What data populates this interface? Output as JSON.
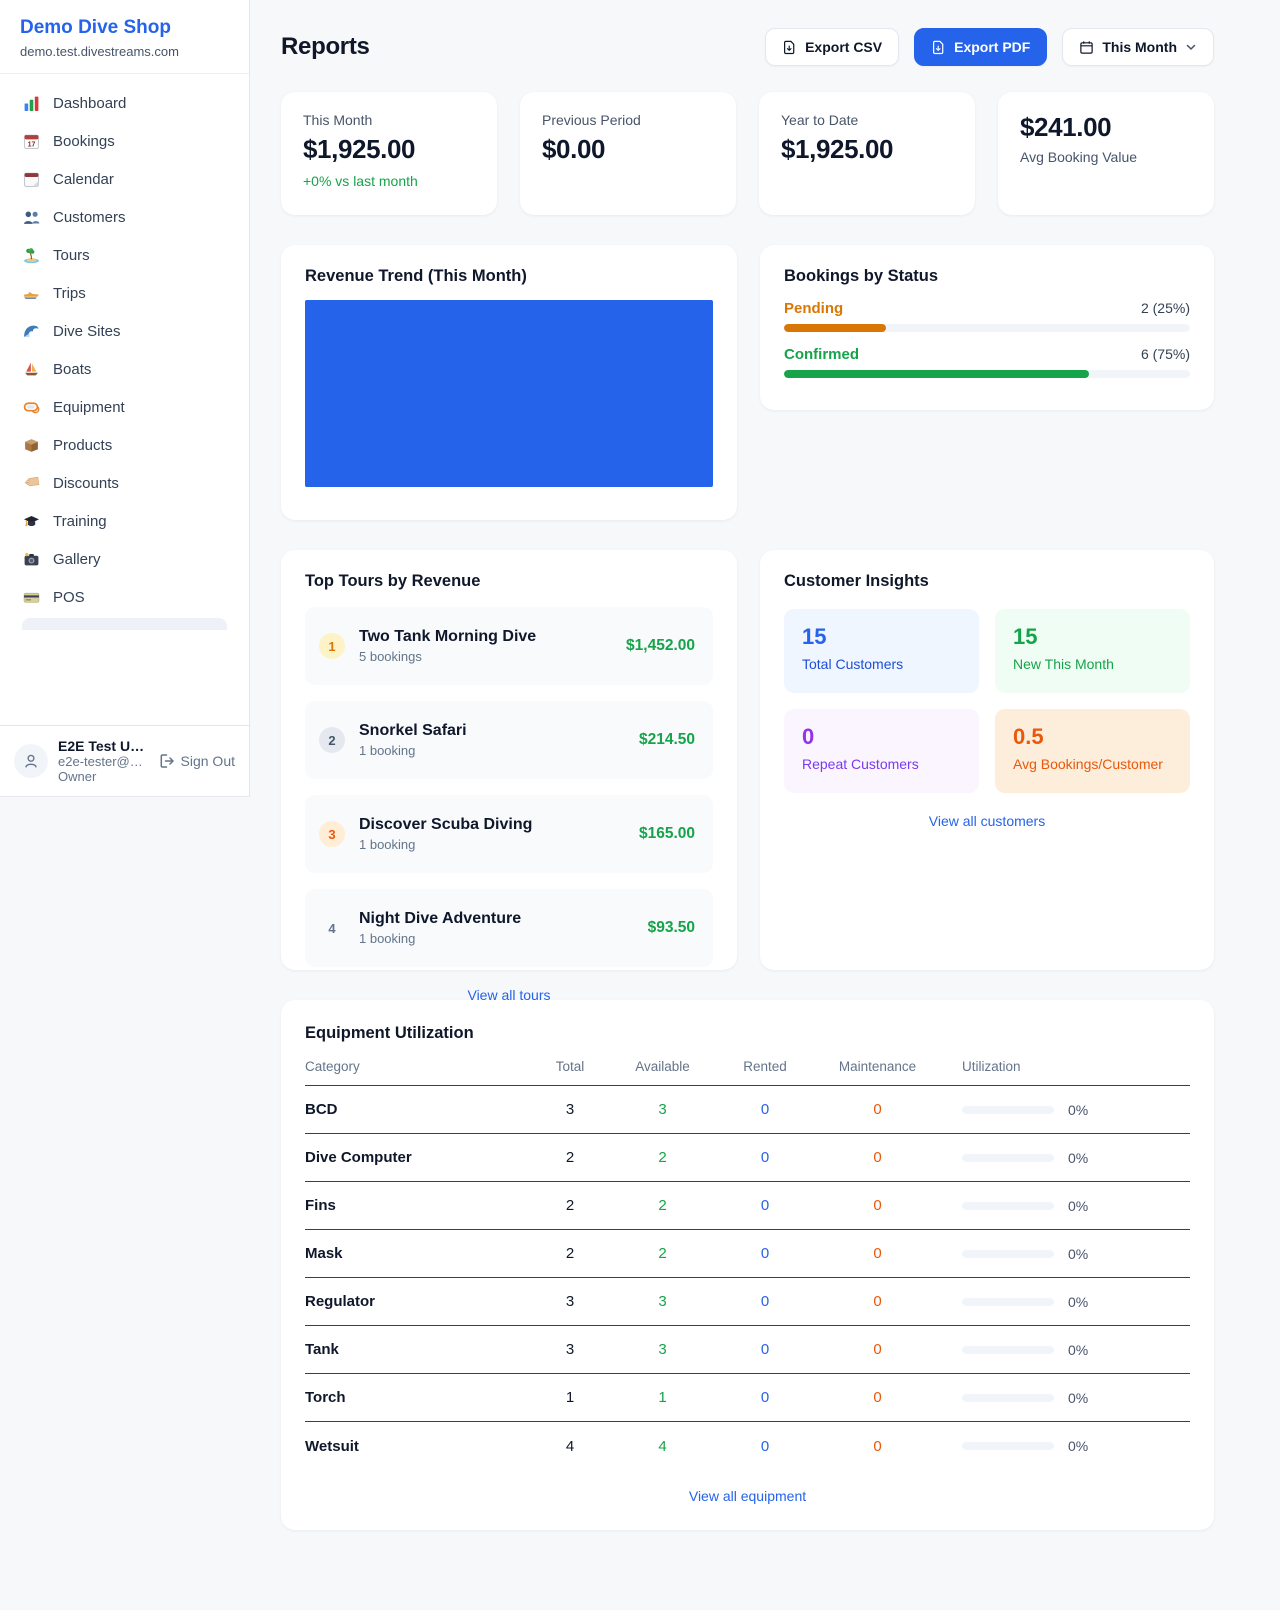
{
  "colors": {
    "accent": "#2563eb",
    "pending": "#d97706",
    "confirmed": "#16a34a",
    "rented": "#2563eb",
    "maintenance": "#ea580c",
    "revenue_bar": "#2563eb"
  },
  "sidebar": {
    "shop_name": "Demo Dive Shop",
    "domain": "demo.test.divestreams.com",
    "items": [
      {
        "icon": "bar-chart-icon",
        "label": "Dashboard"
      },
      {
        "icon": "calendar-date-icon",
        "label": "Bookings"
      },
      {
        "icon": "tear-calendar-icon",
        "label": "Calendar"
      },
      {
        "icon": "people-icon",
        "label": "Customers"
      },
      {
        "icon": "island-icon",
        "label": "Tours"
      },
      {
        "icon": "speedboat-icon",
        "label": "Trips"
      },
      {
        "icon": "wave-icon",
        "label": "Dive Sites"
      },
      {
        "icon": "sailboat-icon",
        "label": "Boats"
      },
      {
        "icon": "diving-mask-icon",
        "label": "Equipment"
      },
      {
        "icon": "package-icon",
        "label": "Products"
      },
      {
        "icon": "tag-icon",
        "label": "Discounts"
      },
      {
        "icon": "graduation-cap-icon",
        "label": "Training"
      },
      {
        "icon": "camera-icon",
        "label": "Gallery"
      },
      {
        "icon": "credit-card-icon",
        "label": "POS"
      }
    ],
    "user": {
      "name": "E2E Test U…",
      "email": "e2e-tester@…",
      "role": "Owner",
      "sign_out": "Sign Out"
    }
  },
  "header": {
    "title": "Reports",
    "export_csv": "Export CSV",
    "export_pdf": "Export PDF",
    "period": "This Month"
  },
  "stats": [
    {
      "label": "This Month",
      "value": "$1,925.00",
      "delta": "+0% vs last month"
    },
    {
      "label": "Previous Period",
      "value": "$0.00"
    },
    {
      "label": "Year to Date",
      "value": "$1,925.00"
    },
    {
      "value": "$241.00",
      "label": "Avg Booking Value"
    }
  ],
  "revenue_trend": {
    "title": "Revenue Trend (This Month)"
  },
  "bookings_by_status": {
    "title": "Bookings by Status",
    "rows": [
      {
        "label": "Pending",
        "value": "2 (25%)",
        "pct": 25
      },
      {
        "label": "Confirmed",
        "value": "6 (75%)",
        "pct": 75
      }
    ]
  },
  "top_tours": {
    "title": "Top Tours by Revenue",
    "rows": [
      {
        "rank": "1",
        "name": "Two Tank Morning Dive",
        "bookings": "5 bookings",
        "amount": "$1,452.00"
      },
      {
        "rank": "2",
        "name": "Snorkel Safari",
        "bookings": "1 booking",
        "amount": "$214.50"
      },
      {
        "rank": "3",
        "name": "Discover Scuba Diving",
        "bookings": "1 booking",
        "amount": "$165.00"
      },
      {
        "rank": "4",
        "name": "Night Dive Adventure",
        "bookings": "1 booking",
        "amount": "$93.50"
      }
    ],
    "view_all": "View all tours"
  },
  "customer_insights": {
    "title": "Customer Insights",
    "tiles": [
      {
        "value": "15",
        "label": "Total Customers"
      },
      {
        "value": "15",
        "label": "New This Month"
      },
      {
        "value": "0",
        "label": "Repeat Customers"
      },
      {
        "value": "0.5",
        "label": "Avg Bookings/Customer"
      }
    ],
    "view_all": "View all customers"
  },
  "equipment": {
    "title": "Equipment Utilization",
    "columns": [
      "Category",
      "Total",
      "Available",
      "Rented",
      "Maintenance",
      "Utilization"
    ],
    "rows": [
      {
        "category": "BCD",
        "total": "3",
        "available": "3",
        "rented": "0",
        "maintenance": "0",
        "utilization": "0%",
        "utilization_pct": 0
      },
      {
        "category": "Dive Computer",
        "total": "2",
        "available": "2",
        "rented": "0",
        "maintenance": "0",
        "utilization": "0%",
        "utilization_pct": 0
      },
      {
        "category": "Fins",
        "total": "2",
        "available": "2",
        "rented": "0",
        "maintenance": "0",
        "utilization": "0%",
        "utilization_pct": 0
      },
      {
        "category": "Mask",
        "total": "2",
        "available": "2",
        "rented": "0",
        "maintenance": "0",
        "utilization": "0%",
        "utilization_pct": 0
      },
      {
        "category": "Regulator",
        "total": "3",
        "available": "3",
        "rented": "0",
        "maintenance": "0",
        "utilization": "0%",
        "utilization_pct": 0
      },
      {
        "category": "Tank",
        "total": "3",
        "available": "3",
        "rented": "0",
        "maintenance": "0",
        "utilization": "0%",
        "utilization_pct": 0
      },
      {
        "category": "Torch",
        "total": "1",
        "available": "1",
        "rented": "0",
        "maintenance": "0",
        "utilization": "0%",
        "utilization_pct": 0
      },
      {
        "category": "Wetsuit",
        "total": "4",
        "available": "4",
        "rented": "0",
        "maintenance": "0",
        "utilization": "0%",
        "utilization_pct": 0
      }
    ],
    "view_all": "View all equipment"
  },
  "chart_data": [
    {
      "type": "bar",
      "title": "Revenue Trend (This Month)",
      "categories": [
        "This Month"
      ],
      "values": [
        1925
      ],
      "ylim": [
        0,
        1925
      ],
      "legend": "off",
      "axes": "hidden",
      "note_color": "#2563eb"
    },
    {
      "type": "bar",
      "title": "Bookings by Status",
      "orientation": "horizontal",
      "categories": [
        "Pending",
        "Confirmed"
      ],
      "values": [
        2,
        6
      ],
      "percent": [
        25,
        75
      ],
      "labels": [
        "2 (25%)",
        "6 (75%)"
      ],
      "xlim": [
        0,
        8
      ]
    }
  ]
}
